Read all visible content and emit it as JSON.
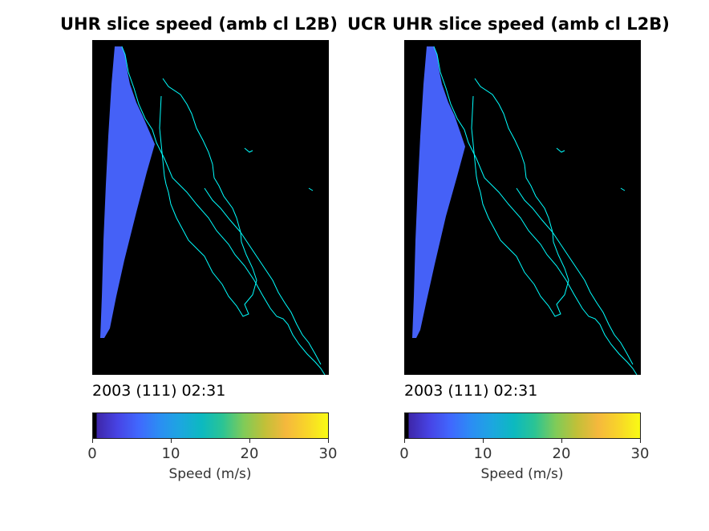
{
  "chart_data": [
    {
      "type": "heatmap",
      "title": "UHR slice speed (amb cl L2B)",
      "timestamp": "2003 (111) 02:31",
      "colorbar": {
        "label": "Speed (m/s)",
        "range": [
          0,
          30
        ],
        "ticks": [
          0,
          10,
          20,
          30
        ]
      },
      "dominant_value": 6,
      "background": "#000000",
      "coastline_color": "#00ffff"
    },
    {
      "type": "heatmap",
      "title": "UCR UHR slice speed (amb cl L2B)",
      "timestamp": "2003 (111) 02:31",
      "colorbar": {
        "label": "Speed (m/s)",
        "range": [
          0,
          30
        ],
        "ticks": [
          0,
          10,
          20,
          30
        ]
      },
      "dominant_value": 6,
      "background": "#000000",
      "coastline_color": "#00ffff"
    }
  ],
  "colormap": [
    "#000000",
    "#3e26a8",
    "#4744e5",
    "#4068fe",
    "#2b8ef3",
    "#1ca7df",
    "#0cb9c0",
    "#2bc494",
    "#80cb58",
    "#c1c038",
    "#f5b83d",
    "#f8d529",
    "#f9fb14"
  ]
}
